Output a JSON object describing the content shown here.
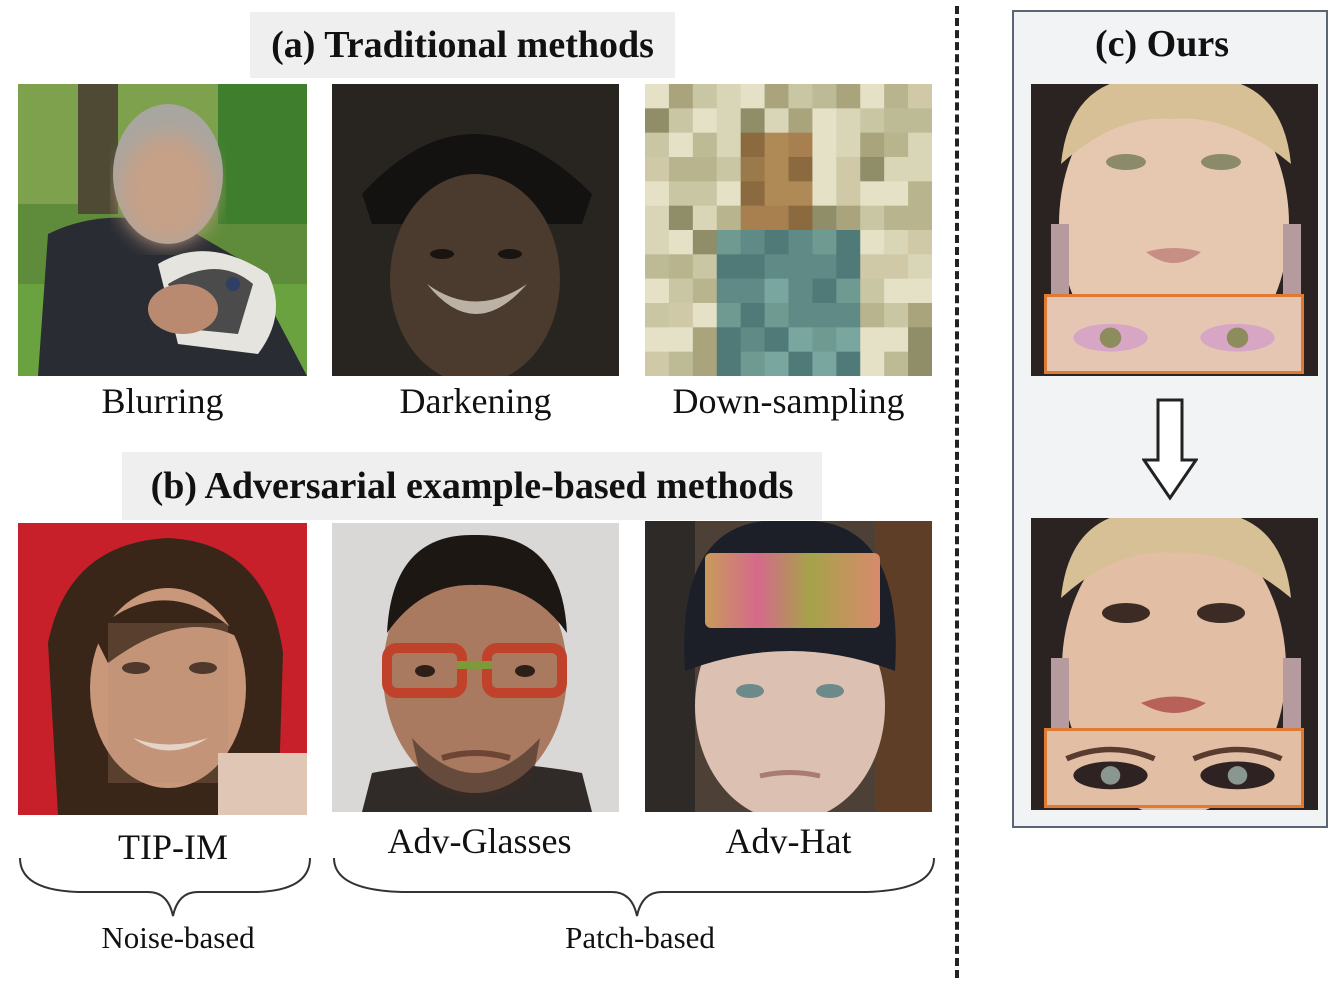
{
  "section_a": {
    "title": "(a) Traditional methods",
    "captions": [
      "Blurring",
      "Darkening",
      "Down-sampling"
    ]
  },
  "section_b": {
    "title": "(b) Adversarial example-based methods",
    "captions": [
      "TIP-IM",
      "Adv-Glasses",
      "Adv-Hat"
    ],
    "groups": [
      "Noise-based",
      "Patch-based"
    ]
  },
  "section_c": {
    "title": "(c) Ours"
  },
  "colors": {
    "title_bg": "#efefef",
    "panel_border": "#5b6675",
    "eye_box": "#e07a32"
  },
  "icons": [
    "down-arrow-icon"
  ]
}
